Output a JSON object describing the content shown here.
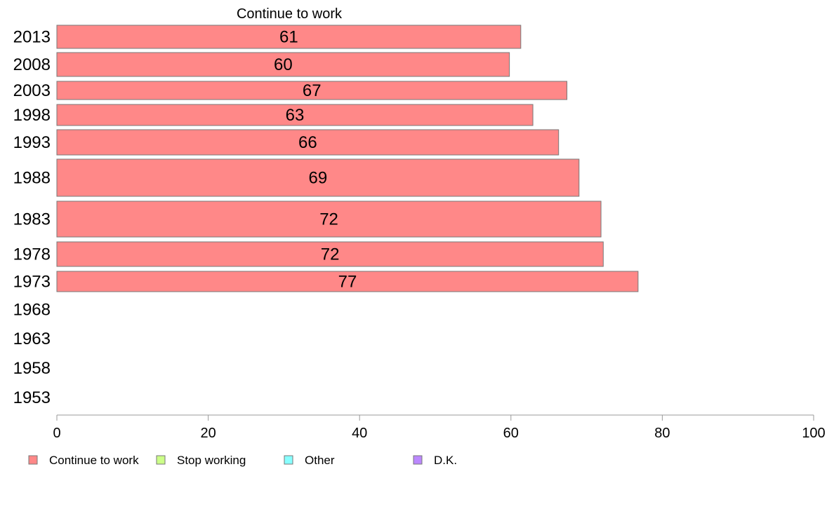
{
  "chart_data": {
    "type": "bar",
    "orientation": "horizontal",
    "title": "Continue to work",
    "categories": [
      "2013",
      "2008",
      "2003",
      "1998",
      "1993",
      "1988",
      "1983",
      "1978",
      "1973",
      "1968",
      "1963",
      "1958",
      "1953"
    ],
    "series": [
      {
        "name": "Continue to work",
        "color": "#ff8888",
        "values": [
          61.3,
          59.8,
          67.4,
          62.9,
          66.3,
          69.0,
          71.9,
          72.2,
          76.8,
          null,
          null,
          null,
          null
        ],
        "labels": [
          "61",
          "60",
          "67",
          "63",
          "66",
          "69",
          "72",
          "72",
          "77",
          "",
          "",
          "",
          ""
        ]
      }
    ],
    "xlim": [
      0,
      100
    ],
    "xticks": [
      0,
      20,
      40,
      60,
      80,
      100
    ],
    "legend": [
      {
        "label": "Continue to work",
        "color": "#ff8888"
      },
      {
        "label": "Stop working",
        "color": "#ccff88"
      },
      {
        "label": "Other",
        "color": "#88ffff"
      },
      {
        "label": "D.K.",
        "color": "#bb88ff"
      }
    ],
    "legend_position": "bottom-left",
    "grid": false
  }
}
